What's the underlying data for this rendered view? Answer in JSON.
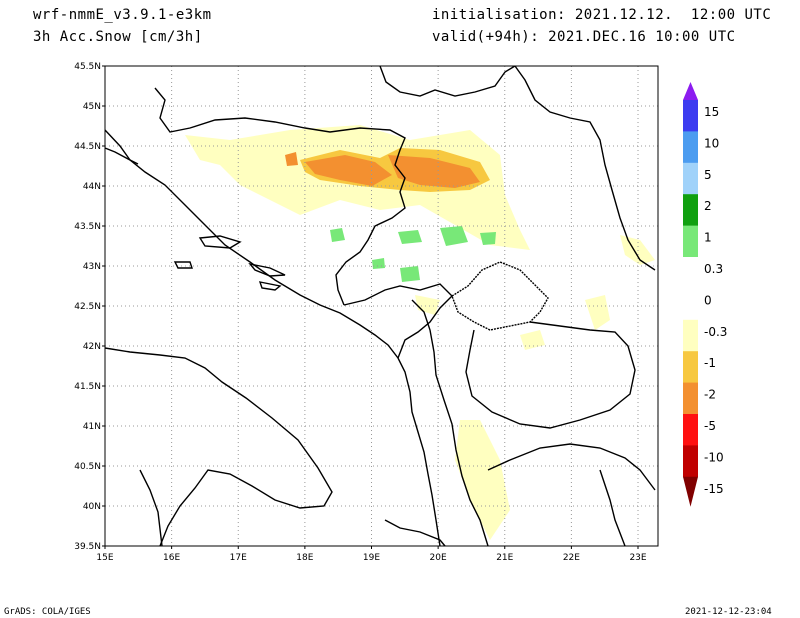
{
  "header": {
    "model": "wrf-nmmE_v3.9.1-e3km",
    "variable": "3h Acc.Snow [cm/3h]",
    "init": "initialisation: 2021.12.12.  12:00 UTC",
    "valid": "valid(+94h): 2021.DEC.16 10:00 UTC"
  },
  "footer": {
    "left": "GrADS: COLA/IGES",
    "right": "2021-12-12-23:04"
  },
  "map": {
    "lon_range": [
      15,
      23.3
    ],
    "lat_range": [
      39.5,
      45.5
    ],
    "lon_ticks": [
      "15E",
      "16E",
      "17E",
      "18E",
      "19E",
      "20E",
      "21E",
      "22E",
      "23E"
    ],
    "lat_ticks": [
      "39.5N",
      "40N",
      "40.5N",
      "41N",
      "41.5N",
      "42N",
      "42.5N",
      "43N",
      "43.5N",
      "44N",
      "44.5N",
      "45N",
      "45.5N"
    ],
    "grid": true
  },
  "colorbar": {
    "labels": [
      "15",
      "10",
      "5",
      "2",
      "1",
      "0.3",
      "0",
      "-0.3",
      "-1",
      "-2",
      "-5",
      "-10",
      "-15"
    ],
    "colors": [
      "#8c1cf0",
      "#3c3cf0",
      "#4c9cf0",
      "#a0d2fa",
      "#10a010",
      "#78e878",
      "#ffffff",
      "#ffffc0",
      "#f7c840",
      "#f39030",
      "#ff1010",
      "#c00000",
      "#800000"
    ]
  }
}
